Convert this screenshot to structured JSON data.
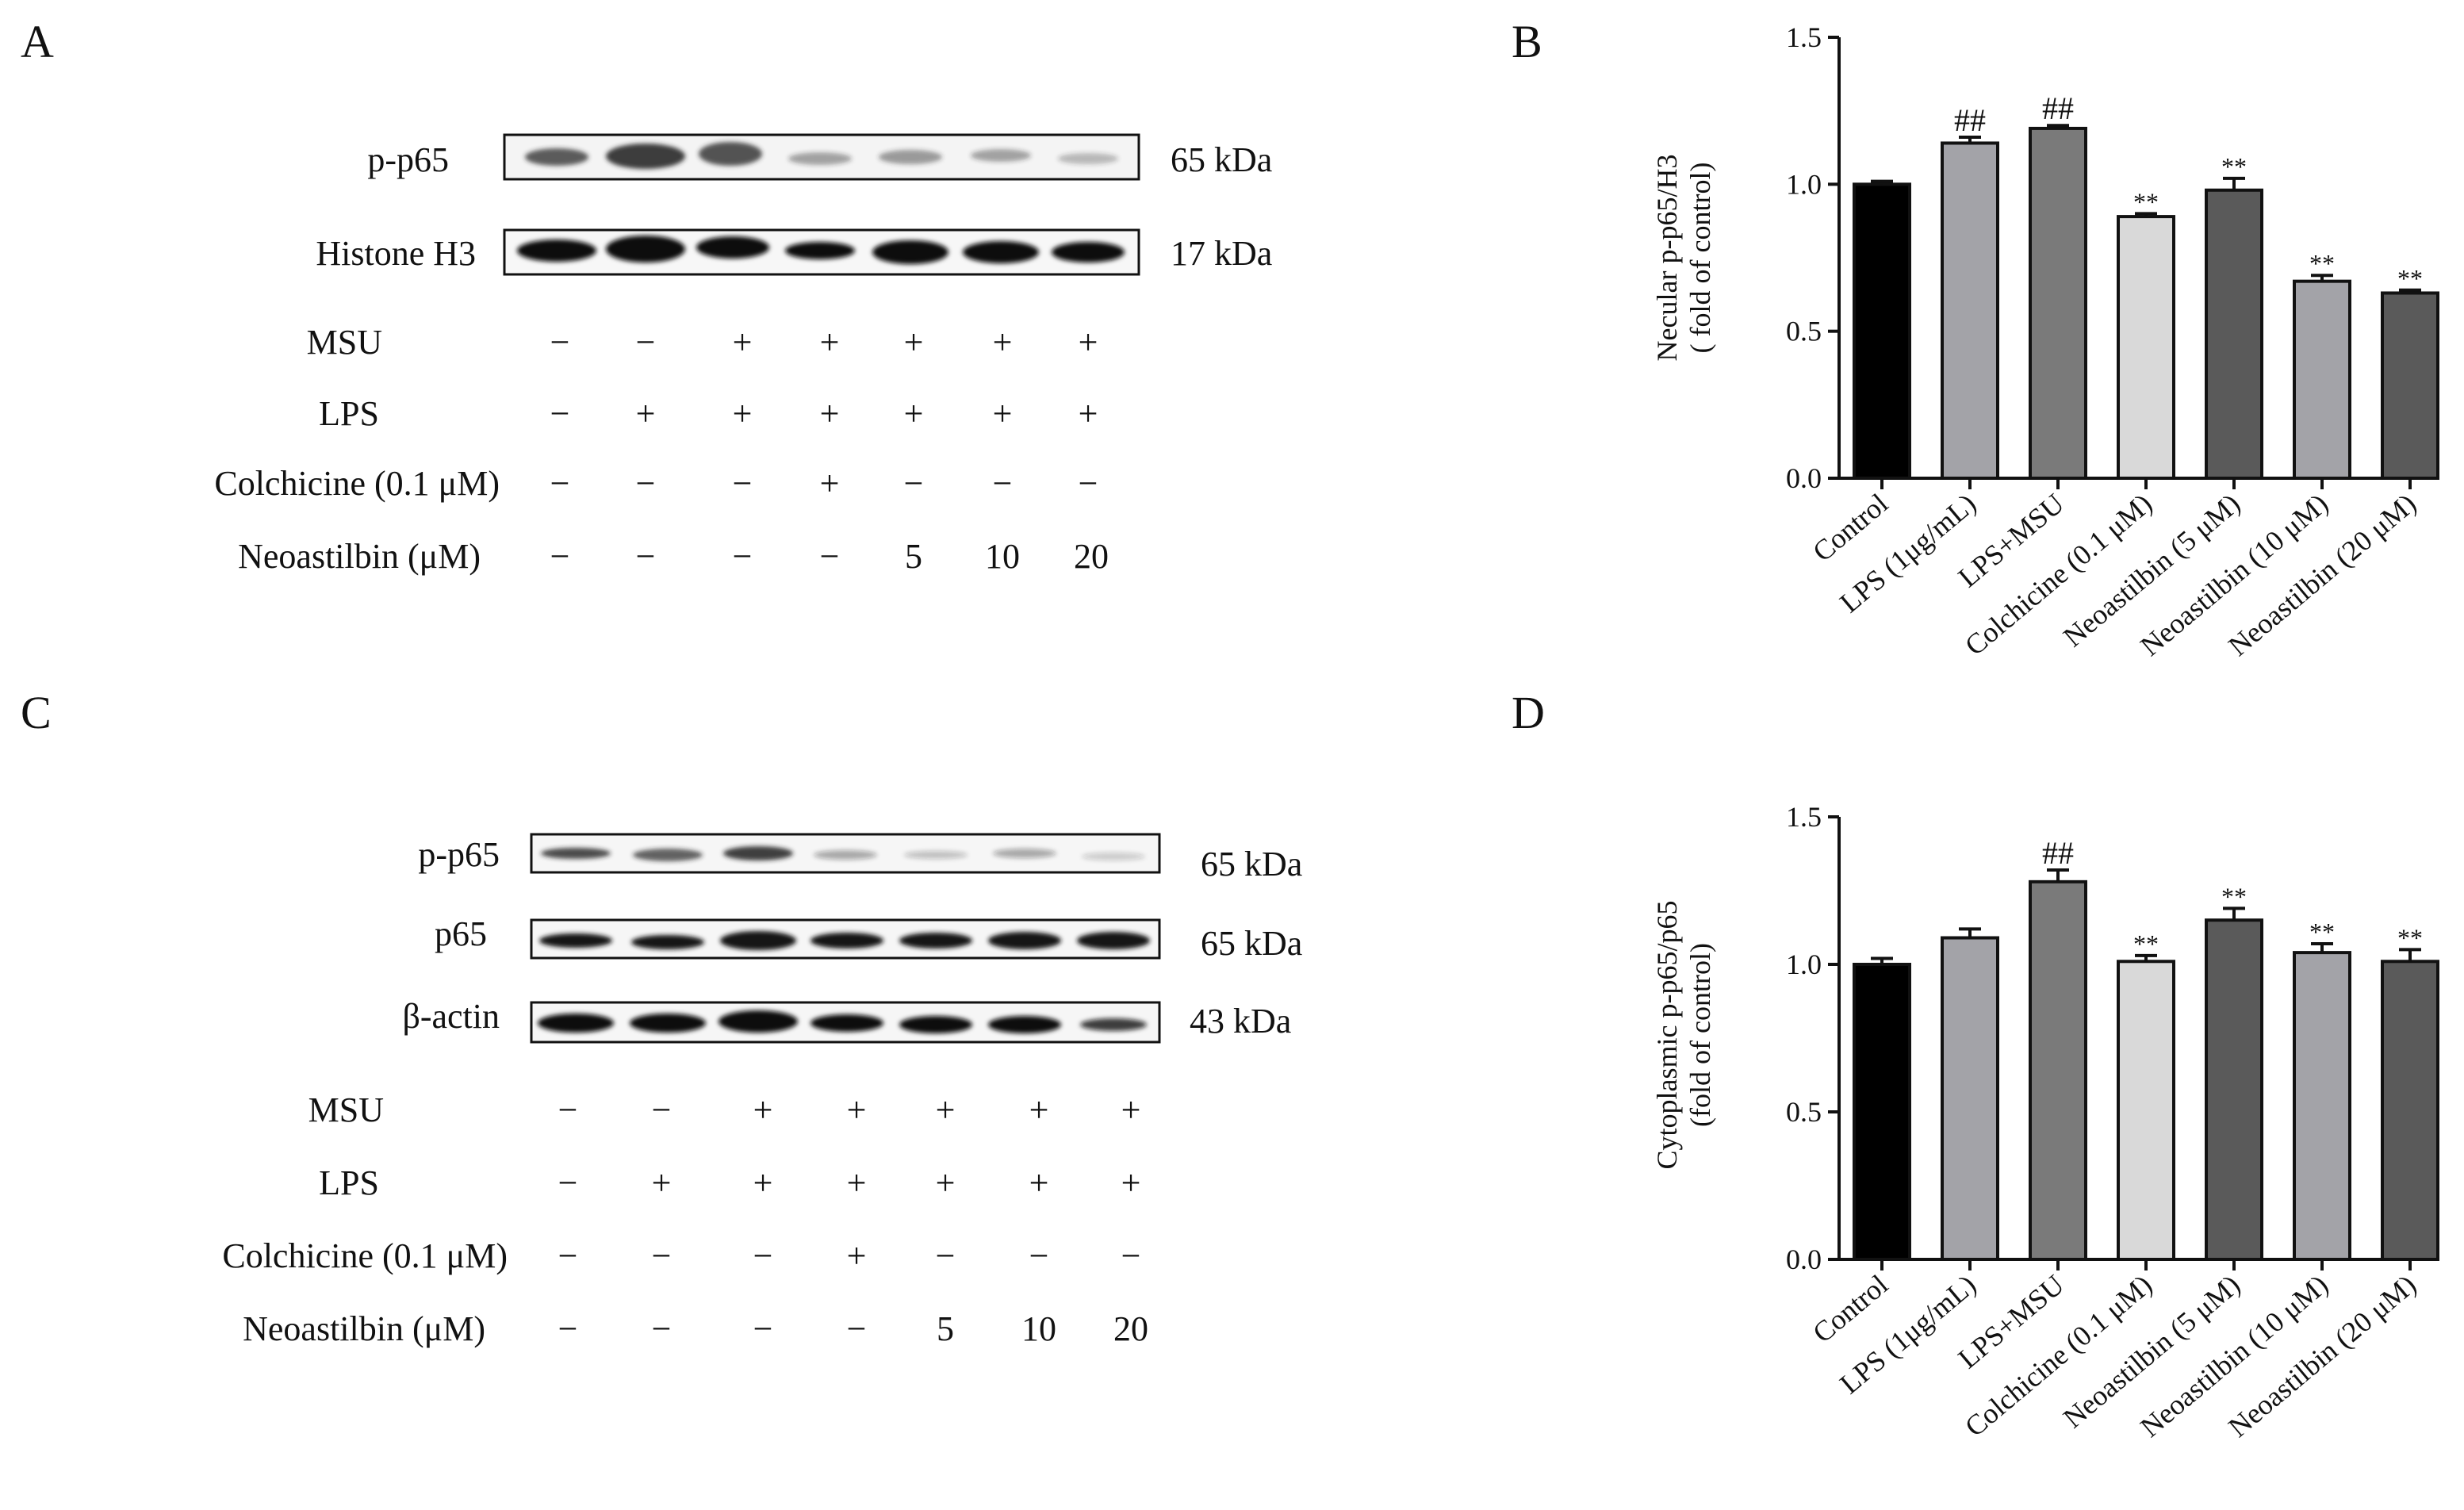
{
  "panels": {
    "A": {
      "letter": "A",
      "blots": [
        {
          "label": "p-p65",
          "kda": "65 kDa"
        },
        {
          "label": "Histone H3",
          "kda": "17 kDa"
        }
      ],
      "conditions": [
        {
          "label": "MSU",
          "values": [
            "−",
            "−",
            "+",
            "+",
            "+",
            "+",
            "+"
          ]
        },
        {
          "label": "LPS",
          "values": [
            "−",
            "+",
            "+",
            "+",
            "+",
            "+",
            "+"
          ]
        },
        {
          "label": "Colchicine (0.1 μM)",
          "values": [
            "−",
            "−",
            "−",
            "+",
            "−",
            "−",
            "−"
          ]
        },
        {
          "label": "Neoastilbin (μM)",
          "values": [
            "−",
            "−",
            "−",
            "−",
            "5",
            "10",
            "20"
          ]
        }
      ]
    },
    "B": {
      "letter": "B"
    },
    "C": {
      "letter": "C",
      "blots": [
        {
          "label": "p-p65",
          "kda": "65 kDa"
        },
        {
          "label": "p65",
          "kda": "65 kDa"
        },
        {
          "label": "β-actin",
          "kda": "43 kDa"
        }
      ],
      "conditions": [
        {
          "label": "MSU",
          "values": [
            "−",
            "−",
            "+",
            "+",
            "+",
            "+",
            "+"
          ]
        },
        {
          "label": "LPS",
          "values": [
            "−",
            "+",
            "+",
            "+",
            "+",
            "+",
            "+"
          ]
        },
        {
          "label": "Colchicine (0.1 μM)",
          "values": [
            "−",
            "−",
            "−",
            "+",
            "−",
            "−",
            "−"
          ]
        },
        {
          "label": "Neoastilbin (μM)",
          "values": [
            "−",
            "−",
            "−",
            "−",
            "5",
            "10",
            "20"
          ]
        }
      ]
    },
    "D": {
      "letter": "D"
    }
  },
  "chart_data": [
    {
      "panel": "B",
      "type": "bar",
      "categories": [
        "Control",
        "LPS (1μg/mL)",
        "LPS+MSU",
        "Colchicine (0.1 μM)",
        "Neoastilbin (5 μM)",
        "Neoastilbin (10 μM)",
        "Neoastilbin (20 μM)"
      ],
      "values": [
        1.0,
        1.14,
        1.19,
        0.89,
        0.98,
        0.67,
        0.63
      ],
      "errors": [
        0.01,
        0.02,
        0.01,
        0.01,
        0.04,
        0.02,
        0.01
      ],
      "annotations": [
        "",
        "##",
        "##",
        "**",
        "**",
        "**",
        "**"
      ],
      "ylabel_line1": "Necular p-p65/H3",
      "ylabel_line2": "( fold of control)",
      "ylim": [
        0,
        1.5
      ],
      "yticks": [
        "0.0",
        "0.5",
        "1.0",
        "1.5"
      ],
      "colors": [
        "#000000",
        "#a3a3a8",
        "#7a7a7a",
        "#d9d9d9",
        "#5a5a5a",
        "#a3a3a8",
        "#5a5a5a"
      ]
    },
    {
      "panel": "D",
      "type": "bar",
      "categories": [
        "Control",
        "LPS (1μg/mL)",
        "LPS+MSU",
        "Colchicine (0.1 μM)",
        "Neoastilbin (5 μM)",
        "Neoastilbin (10 μM)",
        "Neoastilbin (20 μM)"
      ],
      "values": [
        1.0,
        1.09,
        1.28,
        1.01,
        1.15,
        1.04,
        1.01
      ],
      "errors": [
        0.02,
        0.03,
        0.04,
        0.02,
        0.04,
        0.03,
        0.04
      ],
      "annotations": [
        "",
        "",
        "##",
        "**",
        "**",
        "**",
        "**"
      ],
      "ylabel_line1": "Cytoplasmic p-p65/p65",
      "ylabel_line2": "(fold of control)",
      "ylim": [
        0,
        1.5
      ],
      "yticks": [
        "0.0",
        "0.5",
        "1.0",
        "1.5"
      ],
      "colors": [
        "#000000",
        "#a3a3a8",
        "#7a7a7a",
        "#d9d9d9",
        "#5a5a5a",
        "#a3a3a8",
        "#5a5a5a"
      ]
    }
  ]
}
